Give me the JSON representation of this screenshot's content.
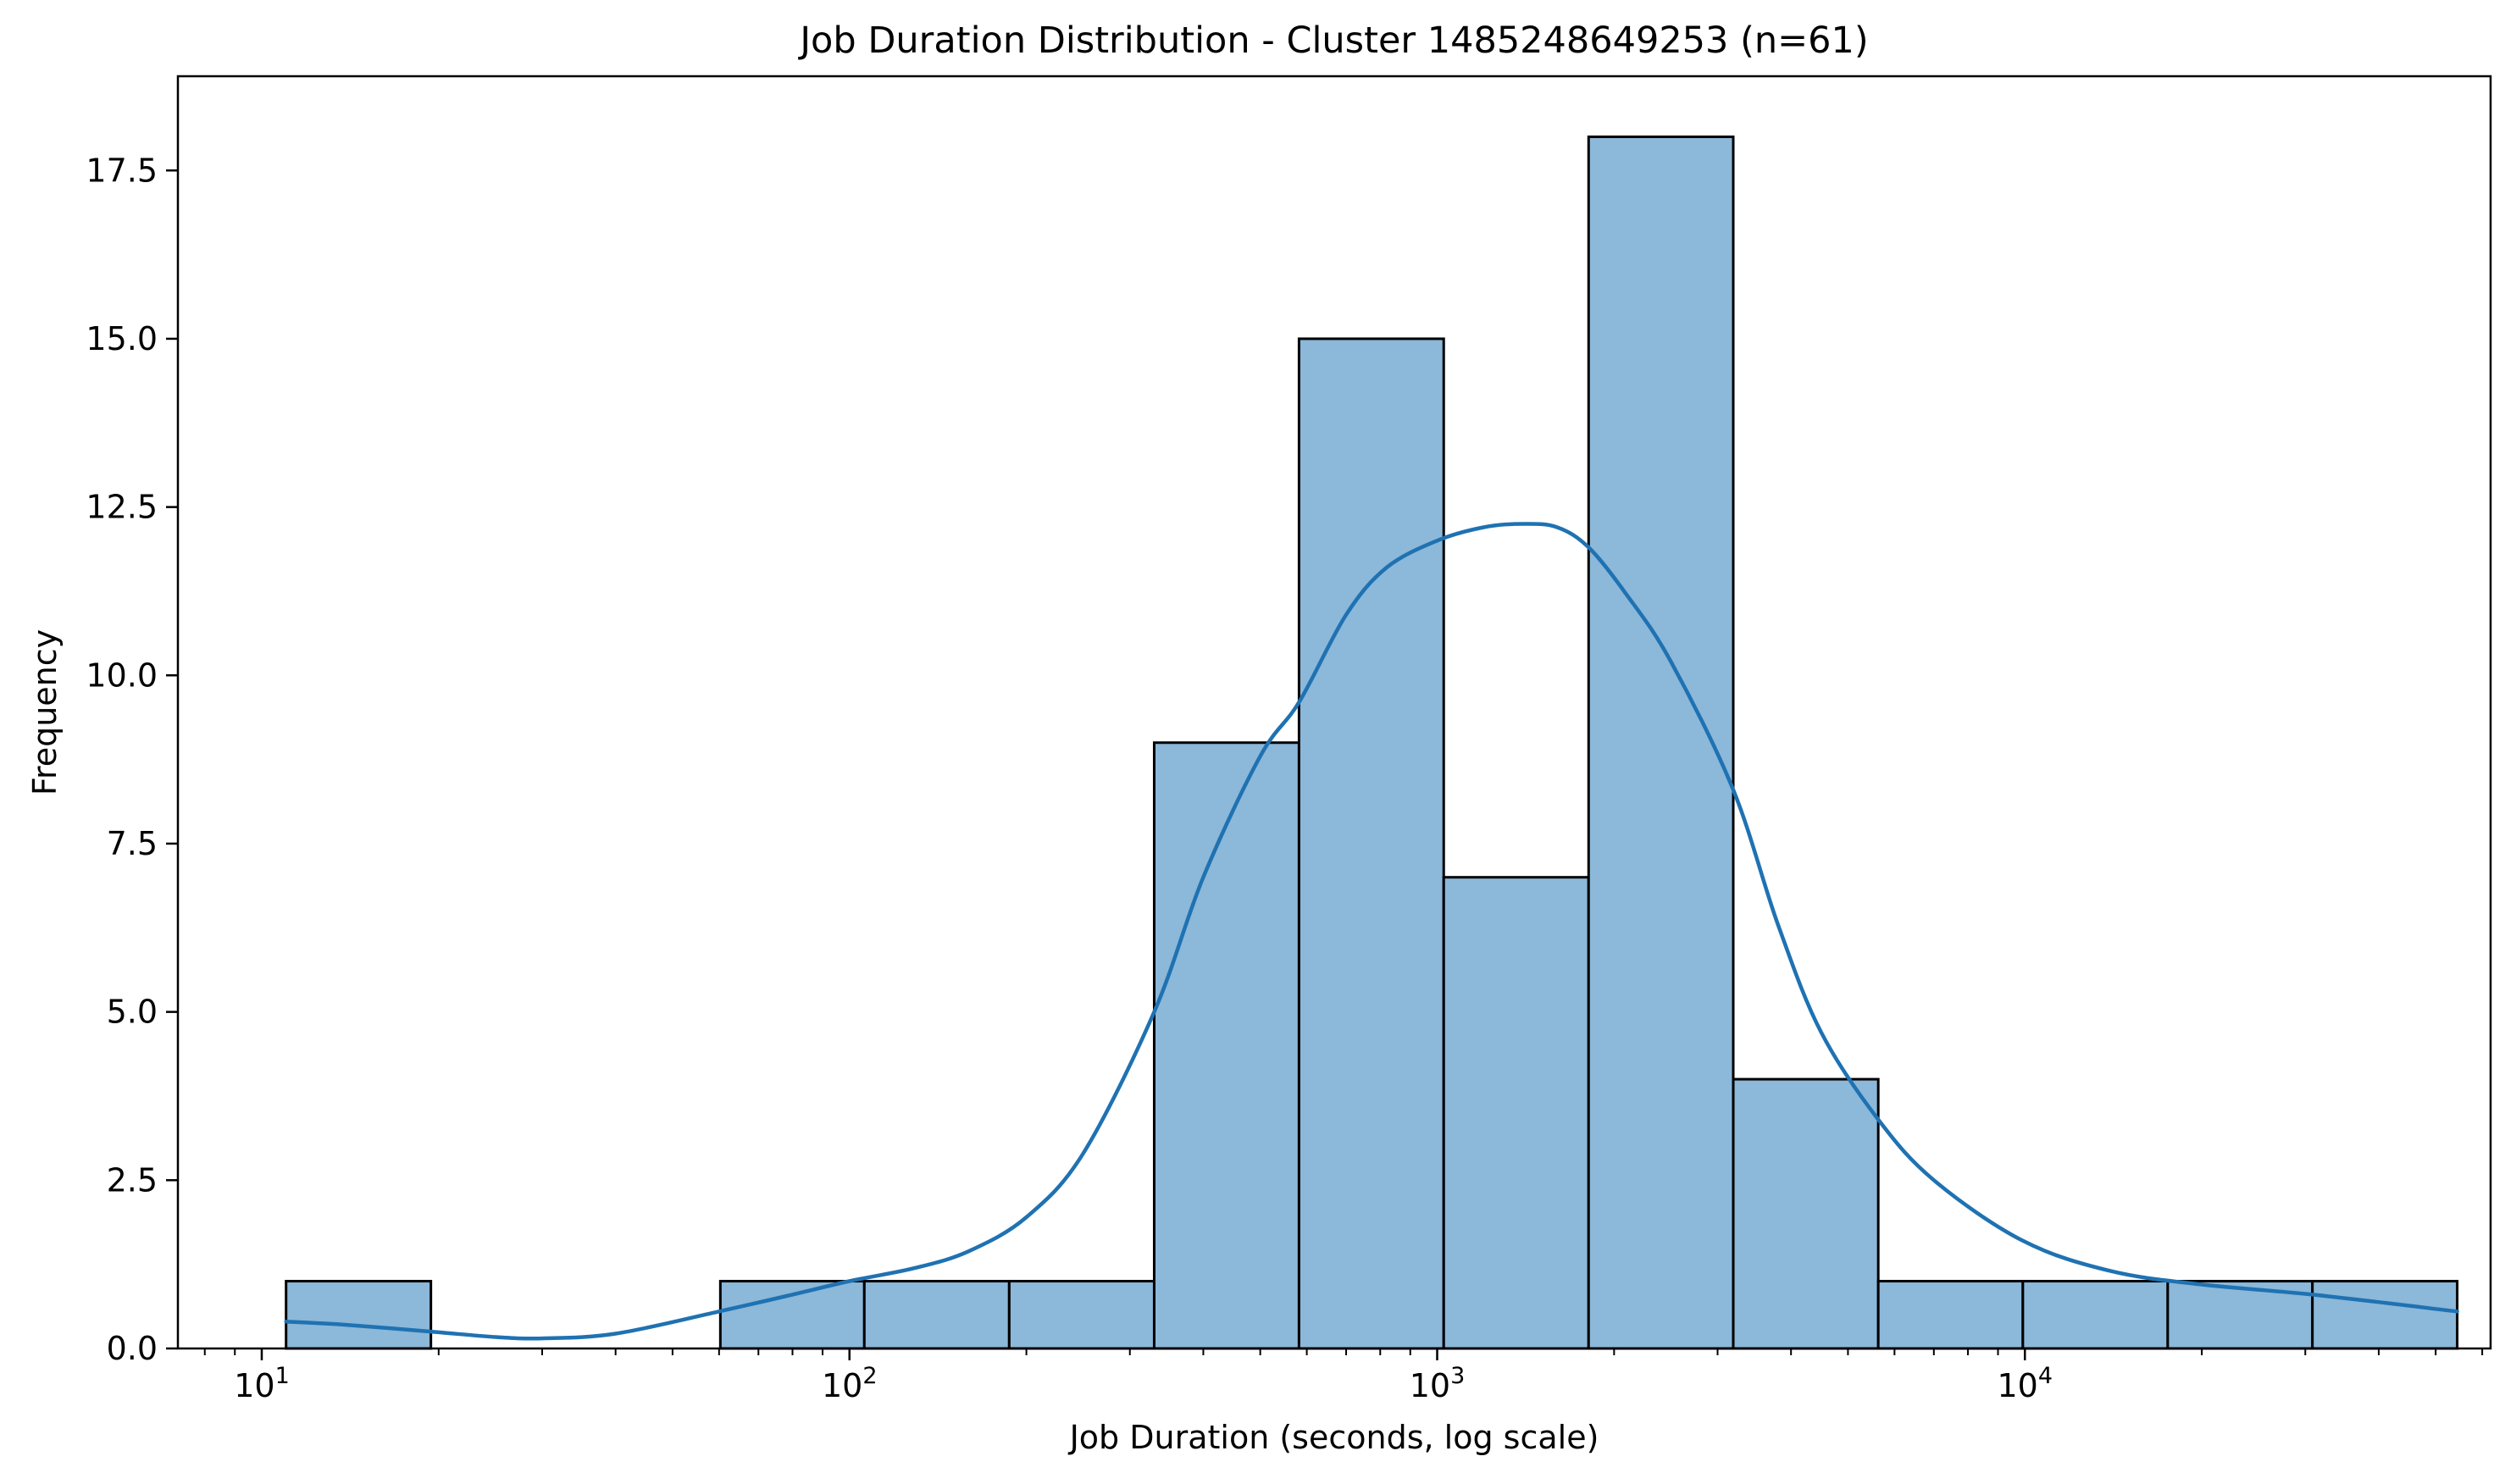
{
  "chart_data": {
    "type": "bar",
    "title": "Job Duration Distribution - Cluster 1485248649253 (n=61)",
    "xlabel": "Job Duration (seconds, log scale)",
    "ylabel": "Frequency",
    "xscale": "log",
    "xlim": [
      7.2,
      62000
    ],
    "ylim": [
      0,
      18.9
    ],
    "grid": false,
    "x_ticks": [
      {
        "value": 10,
        "base": "10",
        "exp": "1"
      },
      {
        "value": 100,
        "base": "10",
        "exp": "2"
      },
      {
        "value": 1000,
        "base": "10",
        "exp": "3"
      },
      {
        "value": 10000,
        "base": "10",
        "exp": "4"
      }
    ],
    "y_ticks": [
      {
        "value": 0,
        "label": "0.0"
      },
      {
        "value": 2.5,
        "label": "2.5"
      },
      {
        "value": 5,
        "label": "5.0"
      },
      {
        "value": 7.5,
        "label": "7.5"
      },
      {
        "value": 10,
        "label": "10.0"
      },
      {
        "value": 12.5,
        "label": "12.5"
      },
      {
        "value": 15,
        "label": "15.0"
      },
      {
        "value": 17.5,
        "label": "17.5"
      }
    ],
    "bins": [
      {
        "x0": 11,
        "x1": 19.4,
        "count": 1
      },
      {
        "x0": 19.4,
        "x1": 34.2,
        "count": 0
      },
      {
        "x0": 34.2,
        "x1": 60.3,
        "count": 0
      },
      {
        "x0": 60.3,
        "x1": 106,
        "count": 1
      },
      {
        "x0": 106,
        "x1": 187,
        "count": 1
      },
      {
        "x0": 187,
        "x1": 330,
        "count": 1
      },
      {
        "x0": 330,
        "x1": 582,
        "count": 9
      },
      {
        "x0": 582,
        "x1": 1026,
        "count": 15
      },
      {
        "x0": 1026,
        "x1": 1810,
        "count": 7
      },
      {
        "x0": 1810,
        "x1": 3190,
        "count": 18
      },
      {
        "x0": 3190,
        "x1": 5630,
        "count": 4
      },
      {
        "x0": 5630,
        "x1": 9920,
        "count": 1
      },
      {
        "x0": 9920,
        "x1": 17500,
        "count": 1
      },
      {
        "x0": 17500,
        "x1": 30850,
        "count": 1
      },
      {
        "x0": 30850,
        "x1": 54400,
        "count": 1
      }
    ],
    "kde": {
      "x": [
        11,
        14,
        19.4,
        25,
        30,
        40,
        60,
        80,
        100,
        130,
        160,
        200,
        250,
        330,
        400,
        500,
        582,
        700,
        820,
        1000,
        1200,
        1400,
        1600,
        1810,
        2100,
        2500,
        3190,
        3800,
        4500,
        5630,
        7000,
        9920,
        14000,
        20000,
        30850,
        54400
      ],
      "y": [
        0.4,
        0.35,
        0.25,
        0.17,
        0.15,
        0.22,
        0.55,
        0.8,
        1.0,
        1.2,
        1.45,
        1.95,
        2.9,
        5.0,
        7.0,
        8.8,
        9.6,
        10.9,
        11.6,
        12.0,
        12.2,
        12.25,
        12.2,
        11.9,
        11.2,
        10.2,
        8.3,
        6.3,
        4.7,
        3.4,
        2.5,
        1.6,
        1.15,
        0.95,
        0.8,
        0.55
      ]
    },
    "colors": {
      "bar_fill": "#8cb8d9",
      "bar_edge": "#000000",
      "kde_line": "#1f72b2"
    }
  }
}
